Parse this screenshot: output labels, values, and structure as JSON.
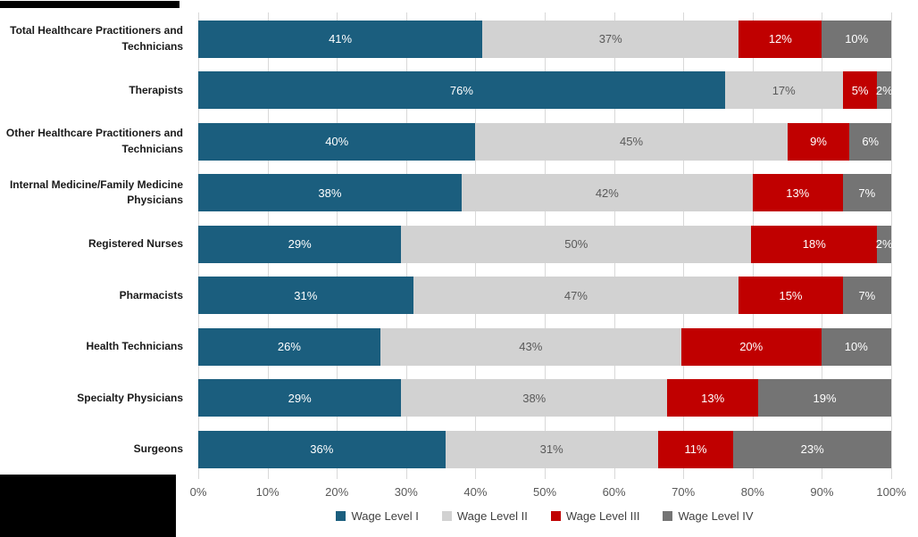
{
  "chart_data": {
    "type": "bar",
    "orientation": "horizontal",
    "stacked": true,
    "title": "",
    "xlabel": "",
    "ylabel": "",
    "xlim": [
      0,
      100
    ],
    "grid": true,
    "legend_position": "bottom",
    "value_suffix": "%",
    "x_ticks": [
      "0%",
      "10%",
      "20%",
      "30%",
      "40%",
      "50%",
      "60%",
      "70%",
      "80%",
      "90%",
      "100%"
    ],
    "categories": [
      "Total Healthcare Practitioners and Technicians",
      "Therapists",
      "Other Healthcare Practitioners and Technicians",
      "Internal Medicine/Family Medicine Physicians",
      "Registered Nurses",
      "Pharmacists",
      "Health Technicians",
      "Specialty Physicians",
      "Surgeons"
    ],
    "series": [
      {
        "name": "Wage Level I",
        "color": "#1B5E7E",
        "label_color": "#FFFFFF",
        "values": [
          41,
          76,
          40,
          38,
          29,
          31,
          26,
          29,
          36
        ]
      },
      {
        "name": "Wage Level II",
        "color": "#D2D2D2",
        "label_color": "#595959",
        "values": [
          37,
          17,
          45,
          42,
          50,
          47,
          43,
          38,
          31
        ]
      },
      {
        "name": "Wage Level III",
        "color": "#C00000",
        "label_color": "#FFFFFF",
        "values": [
          12,
          5,
          9,
          13,
          18,
          15,
          20,
          13,
          11
        ]
      },
      {
        "name": "Wage Level IV",
        "color": "#747474",
        "label_color": "#FFFFFF",
        "values": [
          10,
          2,
          6,
          7,
          2,
          7,
          10,
          19,
          23
        ]
      }
    ],
    "colors": {
      "gridline": "#D9D9D9",
      "axis_tick_text": "#595959",
      "category_text": "#1A1A1A",
      "legend_text": "#404040"
    }
  }
}
